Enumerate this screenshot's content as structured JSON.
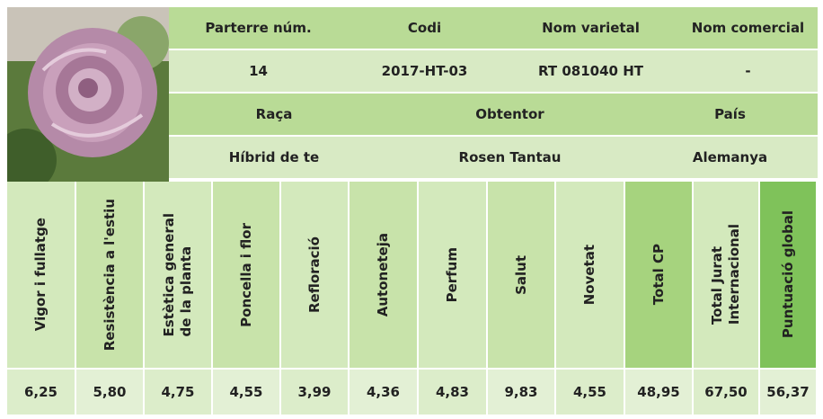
{
  "info": {
    "row1": [
      "Parterre núm.",
      "Codi",
      "Nom varietal",
      "Nom comercial"
    ],
    "row2": [
      "14",
      "2017-HT-03",
      "RT 081040 HT",
      "-"
    ],
    "row3": [
      "Raça",
      "Obtentor",
      "País"
    ],
    "row4": [
      "Híbrid de te",
      "Rosen Tantau",
      "Alemanya"
    ]
  },
  "scores": {
    "headers": [
      [
        "Vigor i fullatge"
      ],
      [
        "Resistència a l'estiu"
      ],
      [
        "Estètica general",
        "de la planta"
      ],
      [
        "Poncella i flor"
      ],
      [
        "Refloració"
      ],
      [
        "Autoneteja"
      ],
      [
        "Perfum"
      ],
      [
        "Salut"
      ],
      [
        "Novetat"
      ],
      [
        "Total CP"
      ],
      [
        "Total Jurat",
        "Internacional"
      ],
      [
        "Puntuació global"
      ]
    ],
    "values": [
      "6,25",
      "5,80",
      "4,75",
      "4,55",
      "3,99",
      "4,36",
      "4,83",
      "9,83",
      "4,55",
      "48,95",
      "67,50",
      "56,37"
    ]
  }
}
